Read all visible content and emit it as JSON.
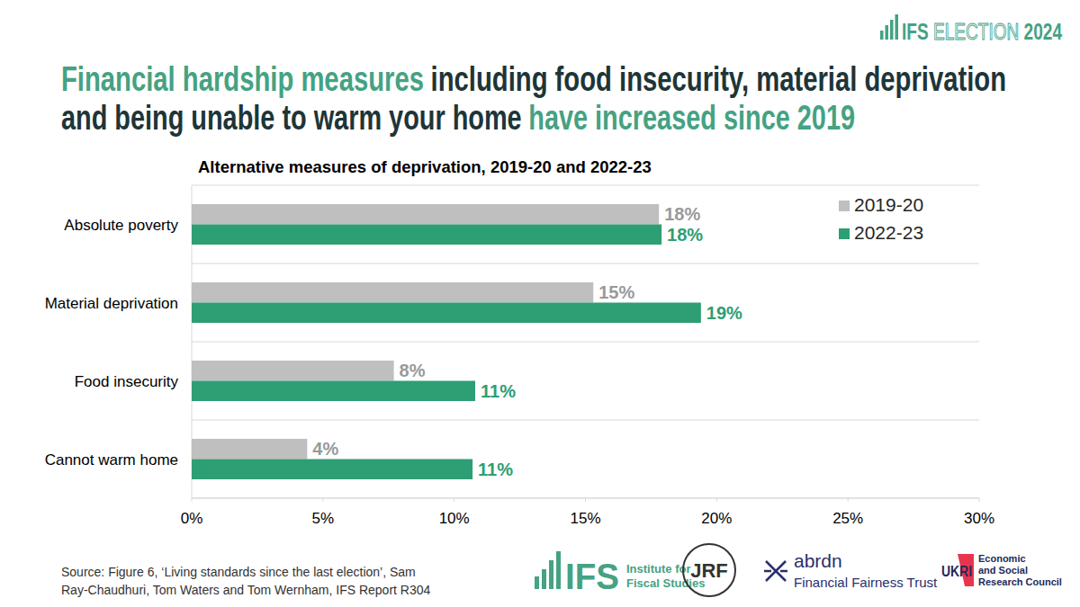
{
  "badge": [
    "IFS",
    "ELECTION",
    "2024"
  ],
  "headline": [
    [
      {
        "text": "Financial hardship measures",
        "color": "#45a282"
      },
      {
        "text": "including food insecurity, material deprivation",
        "color": "#1e3538"
      }
    ],
    [
      {
        "text": "and being unable to warm your home",
        "color": "#1e3538"
      },
      {
        "text": "have increased since 2019",
        "color": "#45a282"
      }
    ]
  ],
  "chart_data": {
    "type": "bar",
    "orientation": "horizontal",
    "title": "Alternative measures of deprivation, 2019-20 and 2022-23",
    "categories": [
      "Absolute poverty",
      "Material deprivation",
      "Food insecurity",
      "Cannot warm home"
    ],
    "series": [
      {
        "name": "2019-20",
        "color": "#bfbfbf",
        "values": [
          17.8,
          15.3,
          7.7,
          4.4
        ],
        "value_labels": [
          "18%",
          "15%",
          "8%",
          "4%"
        ]
      },
      {
        "name": "2022-23",
        "color": "#2e9e74",
        "values": [
          17.9,
          19.4,
          10.8,
          10.7
        ],
        "value_labels": [
          "18%",
          "19%",
          "11%",
          "11%"
        ]
      }
    ],
    "xlim": [
      0,
      30
    ],
    "xticks": [
      {
        "value": 0,
        "label": "0%"
      },
      {
        "value": 5,
        "label": "5%"
      },
      {
        "value": 10,
        "label": "10%"
      },
      {
        "value": 15,
        "label": "15%"
      },
      {
        "value": 20,
        "label": "20%"
      },
      {
        "value": 25,
        "label": "25%"
      },
      {
        "value": 30,
        "label": "30%"
      }
    ],
    "data_labels": true,
    "legend": "top-right",
    "grid": false
  },
  "source": [
    "Source: Figure 6, ‘Living standards since the last election’, Sam",
    "Ray-Chaudhuri, Tom Waters and Tom Wernham, IFS Report R304"
  ],
  "logos": {
    "ifs": [
      "IFS",
      "Institute for",
      "Fiscal Studies"
    ],
    "jrf": [
      "JRF"
    ],
    "abrdn": [
      "abrdn",
      "Financial Fairness Trust"
    ],
    "ukri": [
      "UKRI",
      "Economic",
      "and Social",
      "Research Council"
    ]
  }
}
